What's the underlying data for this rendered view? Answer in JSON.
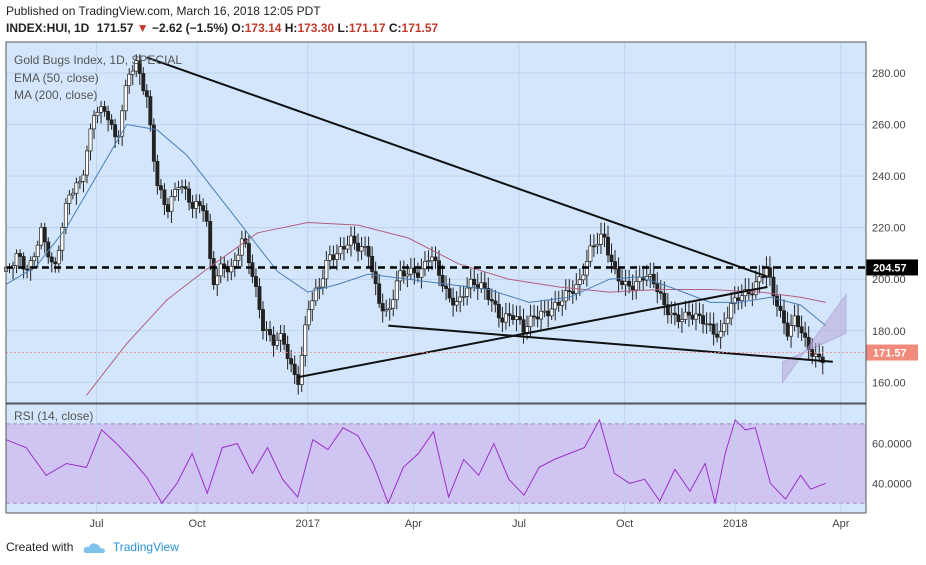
{
  "header": {
    "published": "Published on TradingView.com, March 16, 2018 12:05 PDT",
    "symbol": "INDEX:HUI, 1D",
    "last": "171.57",
    "change": "−2.62 (−1.5%)",
    "o_label": "O:",
    "o_val": "173.14",
    "h_label": "H:",
    "h_val": "173.30",
    "l_label": "L:",
    "l_val": "171.17",
    "c_label": "C:",
    "c_val": "171.57"
  },
  "footer": {
    "created": "Created with",
    "brand": "TradingView"
  },
  "colors": {
    "pane_bg": "#d4e6fb",
    "candle": "#222222",
    "candle_fill_up": "#ffffff",
    "ema": "#4a7fb5",
    "ma": "#b06080",
    "rsi": "#9b30c8",
    "rsi_band": "#cdbcf0",
    "trend": "#111111",
    "channel": "#b9a8d8",
    "last_price": "#f08a7a"
  },
  "chart_data": [
    {
      "type": "candlestick",
      "title": "Gold Bugs Index, 1D, SPECIAL",
      "legend": [
        "EMA (50, close)",
        "MA (200, close)"
      ],
      "ylim": [
        152,
        292
      ],
      "yticks": [
        160,
        180,
        200,
        220,
        240,
        260,
        280
      ],
      "ytick_labels": [
        "160.00",
        "180.00",
        "200.00",
        "220.00",
        "240.00",
        "260.00",
        "280.00"
      ],
      "x_labels": [
        "Jul",
        "Oct",
        "2017",
        "Apr",
        "Jul",
        "Oct",
        "2018",
        "Apr"
      ],
      "x_label_days": [
        90,
        190,
        300,
        405,
        510,
        615,
        725,
        830
      ],
      "days_span": [
        0,
        855
      ],
      "last_price": 171.57,
      "last_price_label": "171.57",
      "horizontal_level": 204.57,
      "horizontal_level_label": "204.57",
      "close_path": [
        [
          0,
          203
        ],
        [
          12,
          212
        ],
        [
          22,
          205
        ],
        [
          35,
          218
        ],
        [
          48,
          200
        ],
        [
          62,
          232
        ],
        [
          75,
          240
        ],
        [
          88,
          268
        ],
        [
          100,
          265
        ],
        [
          110,
          250
        ],
        [
          122,
          278
        ],
        [
          130,
          283
        ],
        [
          140,
          272
        ],
        [
          150,
          240
        ],
        [
          160,
          228
        ],
        [
          172,
          236
        ],
        [
          185,
          226
        ],
        [
          198,
          228
        ],
        [
          205,
          200
        ],
        [
          215,
          208
        ],
        [
          225,
          205
        ],
        [
          235,
          215
        ],
        [
          240,
          208
        ],
        [
          247,
          196
        ],
        [
          255,
          180
        ],
        [
          265,
          176
        ],
        [
          275,
          180
        ],
        [
          285,
          166
        ],
        [
          291,
          162
        ],
        [
          300,
          188
        ],
        [
          312,
          195
        ],
        [
          320,
          206
        ],
        [
          330,
          210
        ],
        [
          342,
          218
        ],
        [
          350,
          215
        ],
        [
          360,
          212
        ],
        [
          370,
          190
        ],
        [
          380,
          183
        ],
        [
          390,
          200
        ],
        [
          400,
          204
        ],
        [
          412,
          205
        ],
        [
          422,
          212
        ],
        [
          432,
          200
        ],
        [
          440,
          190
        ],
        [
          450,
          188
        ],
        [
          460,
          198
        ],
        [
          472,
          200
        ],
        [
          482,
          195
        ],
        [
          492,
          185
        ],
        [
          505,
          184
        ],
        [
          515,
          178
        ],
        [
          525,
          185
        ],
        [
          540,
          190
        ],
        [
          555,
          195
        ],
        [
          570,
          196
        ],
        [
          582,
          210
        ],
        [
          594,
          217
        ],
        [
          605,
          205
        ],
        [
          615,
          200
        ],
        [
          625,
          198
        ],
        [
          635,
          200
        ],
        [
          645,
          196
        ],
        [
          655,
          188
        ],
        [
          665,
          186
        ],
        [
          680,
          189
        ],
        [
          692,
          185
        ],
        [
          702,
          178
        ],
        [
          710,
          175
        ],
        [
          720,
          188
        ],
        [
          730,
          195
        ],
        [
          742,
          198
        ],
        [
          750,
          203
        ],
        [
          756,
          205
        ],
        [
          762,
          195
        ],
        [
          770,
          184
        ],
        [
          778,
          176
        ],
        [
          785,
          184
        ],
        [
          795,
          176
        ],
        [
          805,
          172
        ],
        [
          815,
          171.57
        ]
      ],
      "ema_50": [
        [
          0,
          198
        ],
        [
          30,
          205
        ],
        [
          60,
          220
        ],
        [
          90,
          240
        ],
        [
          120,
          260
        ],
        [
          150,
          258
        ],
        [
          180,
          248
        ],
        [
          210,
          233
        ],
        [
          240,
          218
        ],
        [
          270,
          203
        ],
        [
          300,
          195
        ],
        [
          330,
          198
        ],
        [
          360,
          202
        ],
        [
          400,
          200
        ],
        [
          440,
          198
        ],
        [
          480,
          196
        ],
        [
          520,
          191
        ],
        [
          560,
          193
        ],
        [
          600,
          200
        ],
        [
          630,
          201
        ],
        [
          660,
          197
        ],
        [
          700,
          191
        ],
        [
          730,
          191
        ],
        [
          760,
          193
        ],
        [
          790,
          190
        ],
        [
          815,
          182
        ]
      ],
      "ma_200": [
        [
          80,
          155
        ],
        [
          120,
          175
        ],
        [
          160,
          192
        ],
        [
          200,
          204
        ],
        [
          250,
          218
        ],
        [
          300,
          222
        ],
        [
          350,
          221
        ],
        [
          400,
          216
        ],
        [
          450,
          206
        ],
        [
          500,
          200
        ],
        [
          550,
          197
        ],
        [
          600,
          195
        ],
        [
          650,
          196
        ],
        [
          700,
          196
        ],
        [
          750,
          195
        ],
        [
          790,
          193
        ],
        [
          815,
          191
        ]
      ],
      "trend_lines": [
        [
          [
            140,
            286
          ],
          [
            757,
            201
          ]
        ],
        [
          [
            290,
            162
          ],
          [
            757,
            197
          ]
        ],
        [
          [
            380,
            182
          ],
          [
            822,
            168
          ]
        ]
      ],
      "channel": [
        [
          772,
          160
        ],
        [
          835,
          194
        ],
        [
          835,
          179
        ],
        [
          772,
          168
        ]
      ]
    },
    {
      "type": "line",
      "title": "RSI (14, close)",
      "ylim": [
        25,
        80
      ],
      "yticks": [
        40,
        60
      ],
      "ytick_labels": [
        "40.0000",
        "60.0000"
      ],
      "band": [
        30,
        70
      ],
      "x": [
        0,
        20,
        40,
        60,
        80,
        95,
        110,
        125,
        140,
        155,
        170,
        185,
        200,
        215,
        230,
        245,
        260,
        275,
        290,
        305,
        320,
        335,
        350,
        365,
        380,
        395,
        410,
        425,
        440,
        455,
        470,
        485,
        500,
        515,
        530,
        545,
        560,
        575,
        590,
        605,
        620,
        635,
        650,
        665,
        680,
        695,
        705,
        715,
        725,
        735,
        745,
        760,
        775,
        790,
        800,
        815
      ],
      "values": [
        62,
        58,
        44,
        50,
        48,
        67,
        60,
        52,
        43,
        30,
        40,
        55,
        35,
        58,
        60,
        45,
        58,
        42,
        33,
        62,
        57,
        68,
        64,
        50,
        30,
        48,
        55,
        66,
        33,
        52,
        44,
        60,
        42,
        34,
        48,
        52,
        55,
        58,
        72,
        45,
        40,
        42,
        31,
        47,
        36,
        50,
        30,
        55,
        72,
        67,
        68,
        40,
        32,
        44,
        37,
        40
      ]
    }
  ]
}
